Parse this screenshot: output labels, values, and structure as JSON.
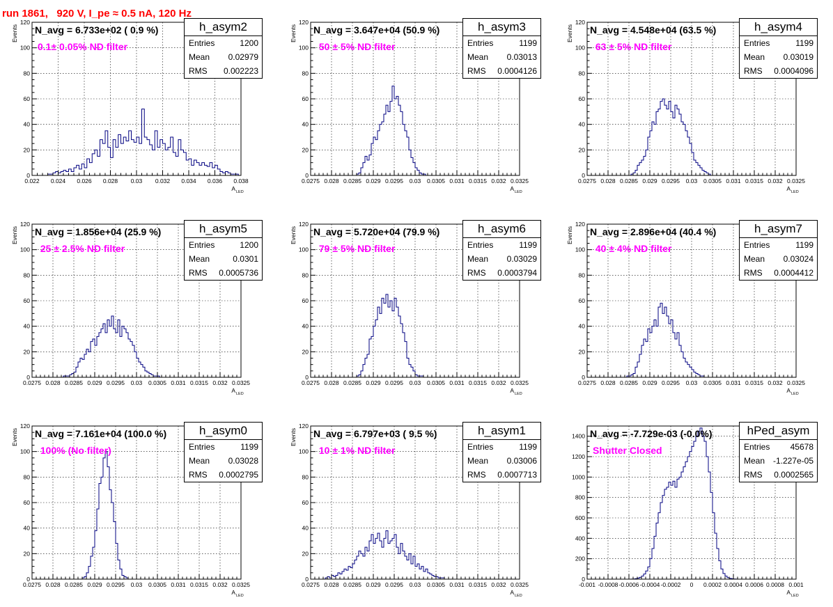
{
  "title": "run 1861,   920 V, I_pe ≈ 0.5 nA, 120 Hz",
  "title_color": "#ff0000",
  "line_color": "#000080",
  "note_color": "#ff00ff",
  "stat_labels": {
    "entries": "Entries",
    "mean": "Mean",
    "rms": "RMS"
  },
  "panels": [
    {
      "name": "h_asym2",
      "navg": "N_avg = 6.733e+02 ( 0.9 %)",
      "note": "0.1± 0.05% ND filter",
      "entries": "1200",
      "mean": "0.02979",
      "rms": "0.002223"
    },
    {
      "name": "h_asym3",
      "navg": "N_avg = 3.647e+04 (50.9 %)",
      "note": " 50 ± 5% ND filter",
      "entries": "1199",
      "mean": "0.03013",
      "rms": "0.0004126"
    },
    {
      "name": "h_asym4",
      "navg": "N_avg = 4.548e+04 (63.5 %)",
      "note": " 63 ± 5% ND filter",
      "entries": "1199",
      "mean": "0.03019",
      "rms": "0.0004096"
    },
    {
      "name": "h_asym5",
      "navg": "N_avg = 1.856e+04 (25.9 %)",
      "note": " 25 ± 2.5% ND filter",
      "entries": "1200",
      "mean": "0.0301",
      "rms": "0.0005736"
    },
    {
      "name": "h_asym6",
      "navg": "N_avg = 5.720e+04 (79.9 %)",
      "note": " 79 ± 5% ND filter",
      "entries": "1199",
      "mean": "0.03029",
      "rms": "0.0003794"
    },
    {
      "name": "h_asym7",
      "navg": "N_avg = 2.896e+04 (40.4 %)",
      "note": " 40 ± 4% ND filter",
      "entries": "1199",
      "mean": "0.03024",
      "rms": "0.0004412"
    },
    {
      "name": "h_asym0",
      "navg": "N_avg = 7.161e+04 (100.0 %)",
      "note": " 100% (No filter)",
      "entries": "1199",
      "mean": "0.03028",
      "rms": "0.0002795"
    },
    {
      "name": "h_asym1",
      "navg": "N_avg = 6.797e+03 ( 9.5 %)",
      "note": " 10 ± 1% ND filter",
      "entries": "1199",
      "mean": "0.03006",
      "rms": "0.0007713"
    },
    {
      "name": "hPed_asym",
      "navg": "N_avg = -7.729e-03 (-0.0%)",
      "note": "Shutter Closed",
      "entries": "45678",
      "mean": "-1.227e-05",
      "rms": "0.0002565"
    }
  ],
  "chart_data": [
    {
      "type": "histogram",
      "series_name": "h_asym2",
      "ylabel": "Events",
      "xlabel": "A",
      "xlabel_sub": "LED",
      "xlim": [
        0.022,
        0.038
      ],
      "ylim": [
        0,
        120
      ],
      "xticks": [
        "0.022",
        "0.024",
        "0.026",
        "0.028",
        "0.03",
        "0.032",
        "0.034",
        "0.036",
        "0.038"
      ],
      "yticks": [
        "0",
        "20",
        "40",
        "60",
        "80",
        "100",
        "120"
      ],
      "x_start": 0.022,
      "bin_width": 0.0002,
      "grid": true,
      "values": [
        0,
        0,
        0,
        0,
        0,
        0,
        1,
        1,
        2,
        3,
        2,
        3,
        4,
        3,
        5,
        3,
        6,
        8,
        5,
        9,
        6,
        13,
        10,
        17,
        20,
        15,
        28,
        25,
        35,
        22,
        14,
        28,
        22,
        32,
        25,
        30,
        27,
        35,
        28,
        26,
        30,
        25,
        52,
        30,
        28,
        24,
        20,
        35,
        22,
        28,
        25,
        20,
        22,
        30,
        18,
        15,
        28,
        20,
        18,
        12,
        13,
        8,
        12,
        10,
        8,
        10,
        8,
        7,
        10,
        6,
        8,
        5,
        3,
        2,
        3,
        2,
        1,
        1,
        1,
        0
      ]
    },
    {
      "type": "histogram",
      "series_name": "h_asym3",
      "ylabel": "Events",
      "xlabel": "A",
      "xlabel_sub": "LED",
      "xlim": [
        0.0275,
        0.0325
      ],
      "ylim": [
        0,
        120
      ],
      "xticks": [
        "0.0275",
        "0.028",
        "0.0285",
        "0.029",
        "0.0295",
        "0.03",
        "0.0305",
        "0.031",
        "0.0315",
        "0.032",
        "0.0325"
      ],
      "yticks": [
        "0",
        "20",
        "40",
        "60",
        "80",
        "100",
        "120"
      ],
      "x_start": 0.0275,
      "bin_width": 5e-05,
      "grid": true,
      "values": [
        0,
        0,
        0,
        0,
        0,
        0,
        0,
        0,
        0,
        0,
        0,
        0,
        0,
        0,
        0,
        0,
        0,
        0,
        0,
        0,
        0,
        0,
        1,
        2,
        6,
        10,
        15,
        12,
        16,
        25,
        30,
        28,
        35,
        40,
        42,
        48,
        55,
        50,
        58,
        70,
        60,
        62,
        55,
        50,
        40,
        35,
        30,
        20,
        14,
        10,
        6,
        4,
        2,
        1,
        1,
        0,
        0,
        0,
        0,
        0,
        0,
        0,
        0,
        0,
        0,
        0,
        0,
        0,
        0,
        0,
        0,
        0,
        0,
        0,
        0,
        0,
        0,
        0,
        0,
        0,
        0,
        0,
        0,
        0,
        0,
        0,
        0,
        0,
        0,
        0,
        0,
        0,
        0,
        0,
        0,
        0,
        0,
        0,
        0,
        0
      ]
    },
    {
      "type": "histogram",
      "series_name": "h_asym4",
      "ylabel": "Events",
      "xlabel": "A",
      "xlabel_sub": "LED",
      "xlim": [
        0.0275,
        0.0325
      ],
      "ylim": [
        0,
        120
      ],
      "xticks": [
        "0.0275",
        "0.028",
        "0.0285",
        "0.029",
        "0.0295",
        "0.03",
        "0.0305",
        "0.031",
        "0.0315",
        "0.032",
        "0.0325"
      ],
      "yticks": [
        "0",
        "20",
        "40",
        "60",
        "80",
        "100",
        "120"
      ],
      "x_start": 0.0275,
      "bin_width": 5e-05,
      "grid": true,
      "values": [
        0,
        0,
        0,
        0,
        0,
        0,
        0,
        0,
        0,
        0,
        0,
        0,
        0,
        0,
        0,
        0,
        0,
        0,
        0,
        0,
        0,
        1,
        2,
        4,
        8,
        10,
        12,
        15,
        20,
        30,
        35,
        42,
        40,
        50,
        52,
        58,
        60,
        55,
        52,
        58,
        50,
        45,
        55,
        52,
        48,
        42,
        40,
        35,
        30,
        25,
        18,
        12,
        10,
        8,
        6,
        4,
        3,
        2,
        1,
        0,
        0,
        0,
        0,
        0,
        0,
        0,
        0,
        0,
        0,
        0,
        0,
        0,
        0,
        0,
        0,
        0,
        0,
        0,
        0,
        0,
        0,
        0,
        0,
        0,
        0,
        0,
        0,
        0,
        0,
        0,
        0,
        0,
        0,
        0,
        0,
        0,
        0,
        0,
        0,
        0
      ]
    },
    {
      "type": "histogram",
      "series_name": "h_asym5",
      "ylabel": "Events",
      "xlabel": "A",
      "xlabel_sub": "LED",
      "xlim": [
        0.0275,
        0.0325
      ],
      "ylim": [
        0,
        120
      ],
      "xticks": [
        "0.0275",
        "0.028",
        "0.0285",
        "0.029",
        "0.0295",
        "0.03",
        "0.0305",
        "0.031",
        "0.0315",
        "0.032",
        "0.0325"
      ],
      "yticks": [
        "0",
        "20",
        "40",
        "60",
        "80",
        "100",
        "120"
      ],
      "x_start": 0.0275,
      "bin_width": 5e-05,
      "grid": true,
      "values": [
        0,
        0,
        0,
        0,
        0,
        0,
        0,
        0,
        0,
        0,
        0,
        0,
        0,
        0,
        0,
        1,
        1,
        1,
        2,
        3,
        4,
        8,
        12,
        15,
        14,
        18,
        22,
        20,
        28,
        30,
        25,
        32,
        35,
        38,
        42,
        35,
        45,
        40,
        48,
        38,
        35,
        45,
        32,
        40,
        38,
        35,
        30,
        28,
        25,
        20,
        15,
        12,
        10,
        8,
        5,
        4,
        3,
        2,
        1,
        1,
        1,
        0,
        0,
        0,
        0,
        0,
        0,
        0,
        0,
        0,
        0,
        0,
        0,
        0,
        0,
        0,
        0,
        0,
        0,
        0,
        0,
        0,
        0,
        0,
        0,
        0,
        0,
        0,
        0,
        0,
        0,
        0,
        0,
        0,
        0,
        0,
        0,
        0,
        0,
        0
      ]
    },
    {
      "type": "histogram",
      "series_name": "h_asym6",
      "ylabel": "Events",
      "xlabel": "A",
      "xlabel_sub": "LED",
      "xlim": [
        0.0275,
        0.0325
      ],
      "ylim": [
        0,
        120
      ],
      "xticks": [
        "0.0275",
        "0.028",
        "0.0285",
        "0.029",
        "0.0295",
        "0.03",
        "0.0305",
        "0.031",
        "0.0315",
        "0.032",
        "0.0325"
      ],
      "yticks": [
        "0",
        "20",
        "40",
        "60",
        "80",
        "100",
        "120"
      ],
      "x_start": 0.0275,
      "bin_width": 5e-05,
      "grid": true,
      "values": [
        0,
        0,
        0,
        0,
        0,
        0,
        0,
        0,
        0,
        0,
        0,
        0,
        0,
        0,
        0,
        0,
        0,
        0,
        0,
        0,
        0,
        0,
        1,
        2,
        5,
        10,
        15,
        18,
        30,
        32,
        40,
        45,
        55,
        50,
        62,
        58,
        65,
        55,
        60,
        52,
        62,
        55,
        48,
        42,
        35,
        28,
        15,
        10,
        8,
        5,
        2,
        1,
        1,
        1,
        0,
        0,
        0,
        0,
        0,
        0,
        0,
        0,
        0,
        0,
        0,
        0,
        0,
        0,
        0,
        0,
        0,
        0,
        0,
        0,
        0,
        0,
        0,
        0,
        0,
        0,
        0,
        0,
        0,
        0,
        0,
        0,
        0,
        0,
        0,
        0,
        0,
        0,
        0,
        0,
        0,
        0,
        0,
        0,
        0,
        0
      ]
    },
    {
      "type": "histogram",
      "series_name": "h_asym7",
      "ylabel": "Events",
      "xlabel": "A",
      "xlabel_sub": "LED",
      "xlim": [
        0.0275,
        0.0325
      ],
      "ylim": [
        0,
        120
      ],
      "xticks": [
        "0.0275",
        "0.028",
        "0.0285",
        "0.029",
        "0.0295",
        "0.03",
        "0.0305",
        "0.031",
        "0.0315",
        "0.032",
        "0.0325"
      ],
      "yticks": [
        "0",
        "20",
        "40",
        "60",
        "80",
        "100",
        "120"
      ],
      "x_start": 0.0275,
      "bin_width": 5e-05,
      "grid": true,
      "values": [
        0,
        0,
        0,
        0,
        0,
        0,
        0,
        0,
        0,
        0,
        0,
        0,
        0,
        0,
        0,
        0,
        0,
        0,
        0,
        1,
        1,
        2,
        3,
        8,
        12,
        18,
        25,
        30,
        28,
        38,
        35,
        40,
        45,
        40,
        55,
        58,
        50,
        55,
        48,
        42,
        45,
        35,
        30,
        35,
        25,
        20,
        15,
        12,
        10,
        8,
        6,
        4,
        3,
        2,
        1,
        1,
        0,
        0,
        0,
        0,
        0,
        0,
        0,
        0,
        0,
        0,
        0,
        0,
        0,
        0,
        0,
        0,
        0,
        0,
        0,
        0,
        0,
        0,
        0,
        0,
        0,
        0,
        0,
        0,
        0,
        0,
        0,
        0,
        0,
        0,
        0,
        0,
        0,
        0,
        0,
        0,
        0,
        0,
        0,
        0
      ]
    },
    {
      "type": "histogram",
      "series_name": "h_asym0",
      "ylabel": "Events",
      "xlabel": "A",
      "xlabel_sub": "LED",
      "xlim": [
        0.0275,
        0.0325
      ],
      "ylim": [
        0,
        120
      ],
      "xticks": [
        "0.0275",
        "0.028",
        "0.0285",
        "0.029",
        "0.0295",
        "0.03",
        "0.0305",
        "0.031",
        "0.0315",
        "0.032",
        "0.0325"
      ],
      "yticks": [
        "0",
        "20",
        "40",
        "60",
        "80",
        "100",
        "120"
      ],
      "x_start": 0.0275,
      "bin_width": 5e-05,
      "grid": true,
      "values": [
        0,
        0,
        0,
        0,
        0,
        0,
        0,
        0,
        0,
        0,
        0,
        0,
        0,
        0,
        0,
        0,
        0,
        0,
        0,
        0,
        0,
        0,
        0,
        0,
        1,
        2,
        5,
        10,
        18,
        25,
        38,
        55,
        75,
        80,
        95,
        100,
        88,
        70,
        60,
        45,
        28,
        15,
        8,
        3,
        2,
        1,
        0,
        0,
        0,
        0,
        0,
        0,
        0,
        0,
        0,
        0,
        0,
        0,
        0,
        0,
        0,
        0,
        0,
        0,
        0,
        0,
        0,
        0,
        0,
        0,
        0,
        0,
        0,
        0,
        0,
        0,
        0,
        0,
        0,
        0,
        0,
        0,
        0,
        0,
        0,
        0,
        0,
        0,
        0,
        0,
        0,
        0,
        0,
        0,
        0,
        0,
        0,
        0,
        0,
        0
      ]
    },
    {
      "type": "histogram",
      "series_name": "h_asym1",
      "ylabel": "Events",
      "xlabel": "A",
      "xlabel_sub": "LED",
      "xlim": [
        0.0275,
        0.0325
      ],
      "ylim": [
        0,
        120
      ],
      "xticks": [
        "0.0275",
        "0.028",
        "0.0285",
        "0.029",
        "0.0295",
        "0.03",
        "0.0305",
        "0.031",
        "0.0315",
        "0.032",
        "0.0325"
      ],
      "yticks": [
        "0",
        "20",
        "40",
        "60",
        "80",
        "100",
        "120"
      ],
      "x_start": 0.0275,
      "bin_width": 5e-05,
      "grid": true,
      "values": [
        0,
        0,
        0,
        0,
        0,
        0,
        0,
        1,
        2,
        1,
        3,
        2,
        3,
        5,
        4,
        6,
        8,
        7,
        10,
        9,
        12,
        15,
        18,
        22,
        20,
        18,
        25,
        22,
        30,
        35,
        28,
        32,
        36,
        30,
        25,
        32,
        38,
        28,
        30,
        32,
        35,
        25,
        20,
        28,
        22,
        18,
        15,
        20,
        12,
        18,
        10,
        12,
        8,
        10,
        6,
        8,
        5,
        4,
        3,
        2,
        2,
        1,
        1,
        1,
        0,
        0,
        0,
        0,
        0,
        0,
        0,
        0,
        0,
        0,
        0,
        0,
        0,
        0,
        0,
        0,
        0,
        0,
        0,
        0,
        0,
        0,
        0,
        0,
        0,
        0,
        0,
        0,
        0,
        0,
        0,
        0,
        0,
        0,
        0,
        0
      ]
    },
    {
      "type": "histogram",
      "series_name": "hPed_asym",
      "ylabel": "",
      "xlabel": "A",
      "xlabel_sub": "LED",
      "xlim": [
        -0.001,
        0.001
      ],
      "ylim": [
        0,
        1500
      ],
      "xticks": [
        "-0.001",
        "-0.0008",
        "-0.0006",
        "-0.0004",
        "-0.0002",
        "0",
        "0.0002",
        "0.0004",
        "0.0006",
        "0.0008",
        "0.001"
      ],
      "yticks": [
        "0",
        "200",
        "400",
        "600",
        "800",
        "1000",
        "1200",
        "1400"
      ],
      "x_start": -0.001,
      "bin_width": 2e-05,
      "grid": true,
      "values": [
        0,
        0,
        0,
        0,
        0,
        0,
        0,
        0,
        0,
        0,
        0,
        0,
        0,
        0,
        0,
        0,
        0,
        0,
        0,
        0,
        0,
        1,
        2,
        5,
        10,
        18,
        30,
        50,
        80,
        120,
        200,
        300,
        420,
        550,
        650,
        750,
        820,
        880,
        900,
        950,
        920,
        960,
        900,
        980,
        1000,
        1050,
        1100,
        1150,
        1200,
        1250,
        1300,
        1350,
        1400,
        1450,
        1480,
        1400,
        1350,
        1200,
        1050,
        850,
        650,
        450,
        300,
        180,
        100,
        55,
        30,
        15,
        8,
        4,
        2,
        1,
        0,
        0,
        0,
        0,
        0,
        0,
        0,
        0,
        0,
        0,
        0,
        0,
        0,
        0,
        0,
        0,
        0,
        0,
        0,
        0,
        0,
        0,
        0,
        0,
        0,
        0,
        0,
        0
      ]
    }
  ]
}
